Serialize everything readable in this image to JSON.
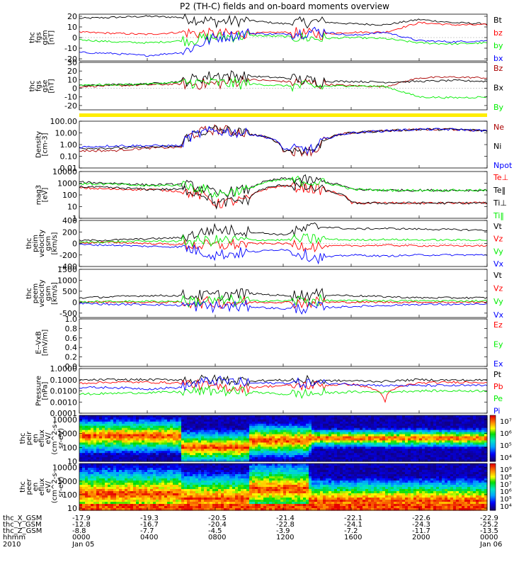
{
  "title": "P2 (TH-C) fields and on-board moments overview",
  "colors": {
    "black": "#000000",
    "red": "#ff0000",
    "green": "#00ee00",
    "blue": "#0000ff",
    "darkred": "#aa0000",
    "yellow": "#ffee00"
  },
  "panels": [
    {
      "id": "fgs-gsm",
      "ylabel": [
        "thc",
        "fgs",
        "gsm",
        "[nT]"
      ],
      "log": false,
      "ylim": [
        -22,
        22
      ],
      "ticks": [
        "20",
        "10",
        "0",
        "-10",
        "-20"
      ],
      "tick_values": [
        20,
        10,
        0,
        -10,
        -20
      ],
      "legend": [
        {
          "label": "Bt",
          "color": "#000000"
        },
        {
          "label": "bz",
          "color": "#ff0000"
        },
        {
          "label": "by",
          "color": "#00ee00"
        },
        {
          "label": "bx",
          "color": "#0000ff"
        }
      ]
    },
    {
      "id": "fgs-gse",
      "ylabel": [
        "thc",
        "fgs",
        "gse",
        "[nT]"
      ],
      "log": false,
      "ylim": [
        -25,
        30
      ],
      "ticks": [
        "30",
        "20",
        "10",
        "0",
        "-10",
        "-20"
      ],
      "tick_values": [
        30,
        20,
        10,
        0,
        -10,
        -20
      ],
      "legend": [
        {
          "label": "Bz",
          "color": "#aa0000"
        },
        {
          "label": "Bx",
          "color": "#000000"
        },
        {
          "label": "By",
          "color": "#00ee00"
        }
      ]
    },
    {
      "id": "density",
      "ylabel": [
        "Density",
        "[cm-3]"
      ],
      "log": true,
      "ylim": [
        0.01,
        100
      ],
      "ticks": [
        "100.00",
        "10.00",
        "1.00",
        "0.10",
        "0.01"
      ],
      "tick_values": [
        100,
        10,
        1,
        0.1,
        0.01
      ],
      "legend": [
        {
          "label": "Ne",
          "color": "#aa0000"
        },
        {
          "label": "Ni",
          "color": "#000000"
        },
        {
          "label": "Npot",
          "color": "#0000ff"
        }
      ]
    },
    {
      "id": "temperature",
      "ylabel": [
        "mag3",
        "[eV]"
      ],
      "log": true,
      "ylim": [
        1,
        10000
      ],
      "ticks": [
        "10000",
        "1000",
        "100",
        "10",
        "1"
      ],
      "tick_values": [
        10000,
        1000,
        100,
        10,
        1
      ],
      "legend": [
        {
          "label": "Te⊥",
          "color": "#ff0000"
        },
        {
          "label": "Te‖",
          "color": "#000000"
        },
        {
          "label": "Ti⊥",
          "color": "#000000"
        },
        {
          "label": "Ti‖",
          "color": "#00ee00"
        }
      ]
    },
    {
      "id": "peim-velocity",
      "ylabel": [
        "thc",
        "peim",
        "velocity",
        "gsm",
        "[km/s]"
      ],
      "log": false,
      "ylim": [
        -400,
        400
      ],
      "ticks": [
        "400",
        "200",
        "0",
        "-200",
        "-400"
      ],
      "tick_values": [
        400,
        200,
        0,
        -200,
        -400
      ],
      "legend": [
        {
          "label": "Vt",
          "color": "#000000"
        },
        {
          "label": "Vz",
          "color": "#ff0000"
        },
        {
          "label": "Vy",
          "color": "#00ee00"
        },
        {
          "label": "Vx",
          "color": "#0000ff"
        }
      ]
    },
    {
      "id": "peem-velocity",
      "ylabel": [
        "thc",
        "peem",
        "velocity",
        "gsm",
        "[km/s]"
      ],
      "log": false,
      "ylim": [
        -700,
        1500
      ],
      "ticks": [
        "1500",
        "1000",
        "500",
        "0",
        "-500"
      ],
      "tick_values": [
        1500,
        1000,
        500,
        0,
        -500
      ],
      "legend": [
        {
          "label": "Vt",
          "color": "#000000"
        },
        {
          "label": "Vz",
          "color": "#ff0000"
        },
        {
          "label": "Vy",
          "color": "#00ee00"
        },
        {
          "label": "Vx",
          "color": "#0000ff"
        }
      ]
    },
    {
      "id": "efield",
      "ylabel": [
        "E--VxB",
        "[mV/m]"
      ],
      "log": false,
      "ylim": [
        0,
        1
      ],
      "ticks": [
        "1.0",
        "0.8",
        "0.6",
        "0.4",
        "0.2",
        "0.0"
      ],
      "tick_values": [
        1,
        0.8,
        0.6,
        0.4,
        0.2,
        0
      ],
      "legend": [
        {
          "label": "Ez",
          "color": "#ff0000"
        },
        {
          "label": "Ey",
          "color": "#00ee00"
        },
        {
          "label": "Ex",
          "color": "#0000ff"
        }
      ]
    },
    {
      "id": "pressure",
      "ylabel": [
        "Pressure",
        "[nPa]"
      ],
      "log": true,
      "ylim": [
        0.0001,
        1
      ],
      "ticks": [
        "1.0000",
        "0.1000",
        "0.0100",
        "0.0010",
        "0.0001"
      ],
      "tick_values": [
        1,
        0.1,
        0.01,
        0.001,
        0.0001
      ],
      "legend": [
        {
          "label": "Pt",
          "color": "#000000"
        },
        {
          "label": "Pb",
          "color": "#ff0000"
        },
        {
          "label": "Pe",
          "color": "#00ee00"
        },
        {
          "label": "Pi",
          "color": "#0000ff"
        }
      ]
    },
    {
      "id": "peir-spec",
      "ylabel": [
        "thc",
        "peir",
        "en",
        "eflux",
        "eV/",
        "(cm^2-s-",
        "sr-eV)"
      ],
      "log": true,
      "ylim": [
        10,
        20000
      ],
      "ticks": [
        "10000",
        "1000",
        "100",
        "10"
      ],
      "tick_values": [
        10000,
        1000,
        100,
        10
      ],
      "colorbar_ticks": [
        "10⁷",
        "10⁶",
        "10⁵",
        "10⁴"
      ]
    },
    {
      "id": "peer-spec",
      "ylabel": [
        "thc",
        "peer",
        "en",
        "eflux",
        "eV/",
        "(cm^2-s-",
        "sr-eV)"
      ],
      "log": true,
      "ylim": [
        7,
        20000
      ],
      "ticks": [
        "10000",
        "1000",
        "100",
        "10"
      ],
      "tick_values": [
        10000,
        1000,
        100,
        10
      ],
      "colorbar_ticks": [
        "10⁹",
        "10⁸",
        "10⁷",
        "10⁶",
        "10⁵",
        "10⁴"
      ]
    }
  ],
  "xaxis": {
    "row_labels": [
      "thc_X_GSM",
      "thc_Y_GSM",
      "thc_Z_GSM",
      "hhmm",
      "2010"
    ],
    "columns": [
      [
        "-17.9",
        "-12.8",
        "-8.8",
        "0000",
        "Jan 05"
      ],
      [
        "-19.3",
        "-16.7",
        "-7.7",
        "0400",
        ""
      ],
      [
        "-20.5",
        "-20.4",
        "-4.5",
        "0800",
        ""
      ],
      [
        "-21.4",
        "-22.8",
        "-3.9",
        "1200",
        ""
      ],
      [
        "-22.1",
        "-24.1",
        "-7.2",
        "1600",
        ""
      ],
      [
        "-22.6",
        "-24.3",
        "-11.7",
        "2000",
        ""
      ],
      [
        "-22.9",
        "-25.2",
        "-13.5",
        "0000",
        "Jan 06"
      ]
    ]
  },
  "chart_data": {
    "type": "line",
    "title": "P2 (TH-C) fields and on-board moments overview",
    "x_ticks": [
      "0000",
      "0400",
      "0800",
      "1200",
      "1600",
      "2000",
      "0000"
    ],
    "x_range_hours": [
      0,
      24
    ],
    "panels": [
      {
        "id": "fgs-gsm",
        "ylim": [
          -22,
          22
        ],
        "x": [
          0,
          2,
          4,
          6,
          8,
          10,
          12,
          14,
          16,
          18,
          20,
          22,
          24
        ],
        "series": [
          {
            "name": "Bt",
            "values": [
              18,
              19,
              20,
              19,
              15,
              16,
              13,
              15,
              13,
              12,
              17,
              14,
              13
            ]
          },
          {
            "name": "bz",
            "values": [
              5,
              4,
              3,
              5,
              3,
              4,
              5,
              3,
              5,
              5,
              14,
              12,
              12
            ]
          },
          {
            "name": "by",
            "values": [
              -2,
              -4,
              -5,
              -3,
              0,
              2,
              1,
              -1,
              0,
              -1,
              -5,
              -6,
              -5
            ]
          },
          {
            "name": "bx",
            "values": [
              -14,
              -15,
              -17,
              -14,
              0,
              4,
              3,
              6,
              2,
              5,
              -3,
              -4,
              -3
            ]
          }
        ]
      },
      {
        "id": "fgs-gse",
        "ylim": [
          -25,
          30
        ],
        "x": [
          0,
          2,
          4,
          6,
          8,
          10,
          12,
          14,
          16,
          18,
          20,
          22,
          24
        ],
        "series": [
          {
            "name": "Bz",
            "values": [
              2,
              3,
              4,
              5,
              5,
              10,
              8,
              5,
              3,
              2,
              12,
              13,
              12
            ]
          },
          {
            "name": "Bx",
            "values": [
              3,
              4,
              5,
              8,
              15,
              14,
              12,
              8,
              8,
              7,
              8,
              9,
              8
            ]
          },
          {
            "name": "By",
            "values": [
              4,
              4,
              5,
              7,
              6,
              5,
              3,
              2,
              3,
              2,
              -10,
              -11,
              -10
            ]
          }
        ]
      },
      {
        "id": "density",
        "ylim": [
          0.01,
          100
        ],
        "x": [
          0,
          2,
          4,
          6,
          8,
          10,
          12,
          14,
          16,
          18,
          20,
          22,
          24
        ],
        "series": [
          {
            "name": "Ne",
            "values": [
              0.3,
              0.3,
              0.5,
              0.6,
              20,
              8,
              0.3,
              0.3,
              10,
              15,
              20,
              20,
              15
            ]
          },
          {
            "name": "Ni",
            "values": [
              0.5,
              0.5,
              0.6,
              0.7,
              20,
              8,
              0.3,
              0.4,
              10,
              15,
              20,
              20,
              15
            ]
          },
          {
            "name": "Npot",
            "values": [
              0.6,
              0.8,
              0.8,
              0.8,
              15,
              8,
              0.4,
              0.4,
              10,
              15,
              20,
              20,
              15
            ]
          }
        ]
      },
      {
        "id": "temperature",
        "ylim": [
          1,
          10000
        ],
        "x": [
          0,
          2,
          4,
          6,
          8,
          10,
          12,
          14,
          16,
          18,
          20,
          22,
          24
        ],
        "series": [
          {
            "name": "Te⊥",
            "values": [
              400,
              300,
              300,
              200,
              15,
              40,
              600,
              300,
              20,
              20,
              20,
              20,
              20
            ]
          },
          {
            "name": "Te‖",
            "values": [
              500,
              400,
              300,
              300,
              15,
              40,
              700,
              300,
              20,
              20,
              20,
              20,
              20
            ]
          },
          {
            "name": "Ti⊥",
            "values": [
              1200,
              1000,
              700,
              800,
              100,
              300,
              2500,
              1500,
              300,
              250,
              250,
              250,
              250
            ]
          },
          {
            "name": "Ti‖",
            "values": [
              900,
              800,
              600,
              700,
              100,
              300,
              2000,
              1200,
              300,
              250,
              250,
              250,
              250
            ]
          }
        ]
      },
      {
        "id": "peim-velocity",
        "ylim": [
          -400,
          400
        ],
        "x": [
          0,
          2,
          4,
          6,
          8,
          10,
          12,
          14,
          16,
          18,
          20,
          22,
          24
        ],
        "series": [
          {
            "name": "Vt",
            "values": [
              50,
              60,
              80,
              100,
              250,
              200,
              150,
              300,
              250,
              260,
              250,
              240,
              230
            ]
          },
          {
            "name": "Vz",
            "values": [
              10,
              20,
              0,
              -20,
              -40,
              0,
              0,
              -50,
              -40,
              -30,
              -40,
              -40,
              -40
            ]
          },
          {
            "name": "Vy",
            "values": [
              20,
              30,
              40,
              40,
              50,
              60,
              60,
              80,
              60,
              70,
              60,
              60,
              60
            ]
          },
          {
            "name": "Vx",
            "values": [
              -20,
              -30,
              -50,
              -60,
              -200,
              -150,
              -100,
              -250,
              -200,
              -220,
              -200,
              -200,
              -200
            ]
          }
        ]
      },
      {
        "id": "peem-velocity",
        "ylim": [
          -700,
          1500
        ],
        "x": [
          0,
          2,
          4,
          6,
          8,
          10,
          12,
          14,
          16,
          18,
          20,
          22,
          24
        ],
        "series": [
          {
            "name": "Vt",
            "values": [
              200,
              250,
              300,
              300,
              300,
              400,
              300,
              350,
              300,
              250,
              200,
              200,
              200
            ]
          },
          {
            "name": "Vz",
            "values": [
              0,
              10,
              -10,
              0,
              -20,
              0,
              0,
              -10,
              0,
              0,
              0,
              0,
              0
            ]
          },
          {
            "name": "Vy",
            "values": [
              20,
              30,
              40,
              40,
              50,
              60,
              60,
              80,
              60,
              70,
              60,
              60,
              60
            ]
          },
          {
            "name": "Vx",
            "values": [
              -50,
              -100,
              -100,
              -150,
              -200,
              -200,
              -300,
              -250,
              -200,
              -150,
              -100,
              -100,
              -100
            ]
          }
        ]
      },
      {
        "id": "pressure",
        "ylim": [
          0.0001,
          1
        ],
        "x": [
          0,
          2,
          4,
          6,
          8,
          10,
          12,
          14,
          16,
          18,
          20,
          22,
          24
        ],
        "series": [
          {
            "name": "Pt",
            "values": [
              0.09,
              0.1,
              0.1,
              0.1,
              0.1,
              0.08,
              0.09,
              0.08,
              0.08,
              0.07,
              0.1,
              0.09,
              0.09
            ]
          },
          {
            "name": "Pb",
            "values": [
              0.05,
              0.06,
              0.06,
              0.05,
              0.02,
              0.02,
              0.03,
              0.03,
              0.04,
              0.001,
              0.05,
              0.06,
              0.06
            ]
          },
          {
            "name": "Pe",
            "values": [
              0.005,
              0.006,
              0.007,
              0.008,
              0.01,
              0.008,
              0.005,
              0.006,
              0.008,
              0.008,
              0.01,
              0.01,
              0.01
            ]
          },
          {
            "name": "Pi",
            "values": [
              0.02,
              0.02,
              0.015,
              0.02,
              0.08,
              0.05,
              0.05,
              0.05,
              0.04,
              0.03,
              0.03,
              0.03,
              0.03
            ]
          }
        ]
      }
    ]
  }
}
